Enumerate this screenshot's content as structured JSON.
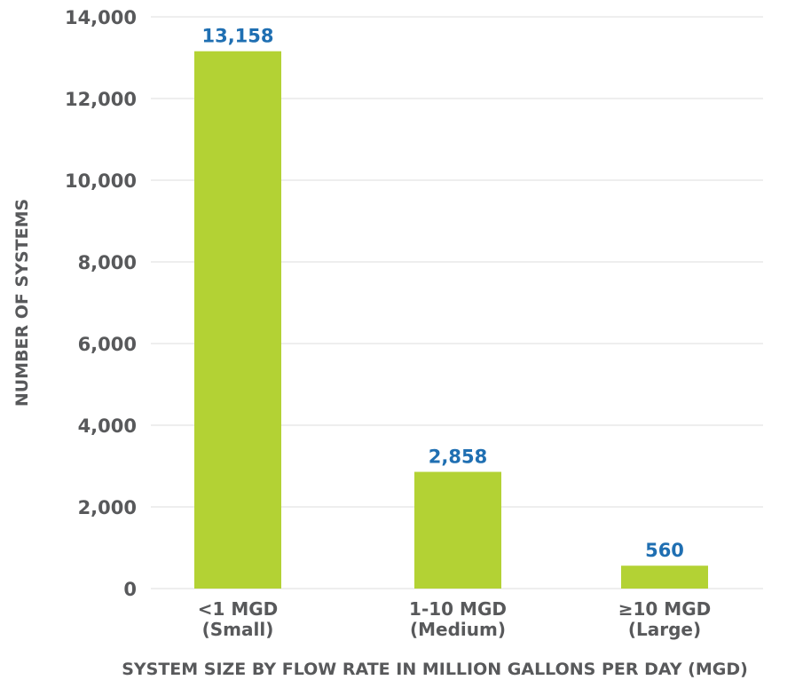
{
  "chart_data": {
    "type": "bar",
    "categories": [
      [
        "<1 MGD",
        "(Small)"
      ],
      [
        "1-10 MGD",
        "(Medium)"
      ],
      [
        "≥10 MGD",
        "(Large)"
      ]
    ],
    "values": [
      13158,
      2858,
      560
    ],
    "value_labels": [
      "13,158",
      "2,858",
      "560"
    ],
    "title": "",
    "xlabel": "SYSTEM SIZE BY FLOW RATE IN MILLION GALLONS PER DAY (MGD)",
    "ylabel": "NUMBER OF SYSTEMS",
    "ylim": [
      0,
      14000
    ],
    "yticks": [
      0,
      2000,
      4000,
      6000,
      8000,
      10000,
      12000,
      14000
    ],
    "ytick_labels": [
      "0",
      "2,000",
      "4,000",
      "6,000",
      "8,000",
      "10,000",
      "12,000",
      "14,000"
    ],
    "grid": true,
    "colors": {
      "bar": "#b3d234",
      "value_label": "#1f6fb2",
      "text": "#58595b",
      "grid": "#dcdcdc"
    }
  }
}
